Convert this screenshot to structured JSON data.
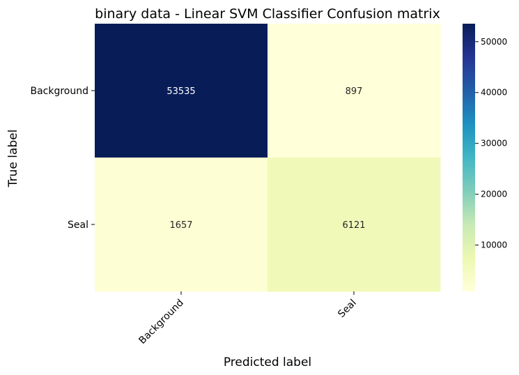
{
  "chart_data": {
    "type": "heatmap",
    "title": "binary data - Linear SVM Classifier Confusion matrix",
    "xlabel": "Predicted label",
    "ylabel": "True label",
    "x_categories": [
      "Background",
      "Seal"
    ],
    "y_categories": [
      "Background",
      "Seal"
    ],
    "values": [
      [
        53535,
        897
      ],
      [
        1657,
        6121
      ]
    ],
    "colormap": "YlGnBu",
    "colorbar": {
      "min": 897,
      "max": 53535,
      "ticks": [
        10000,
        20000,
        30000,
        40000,
        50000
      ]
    },
    "annotation_colors": {
      "light": "#ffffff",
      "dark": "#262626"
    }
  }
}
